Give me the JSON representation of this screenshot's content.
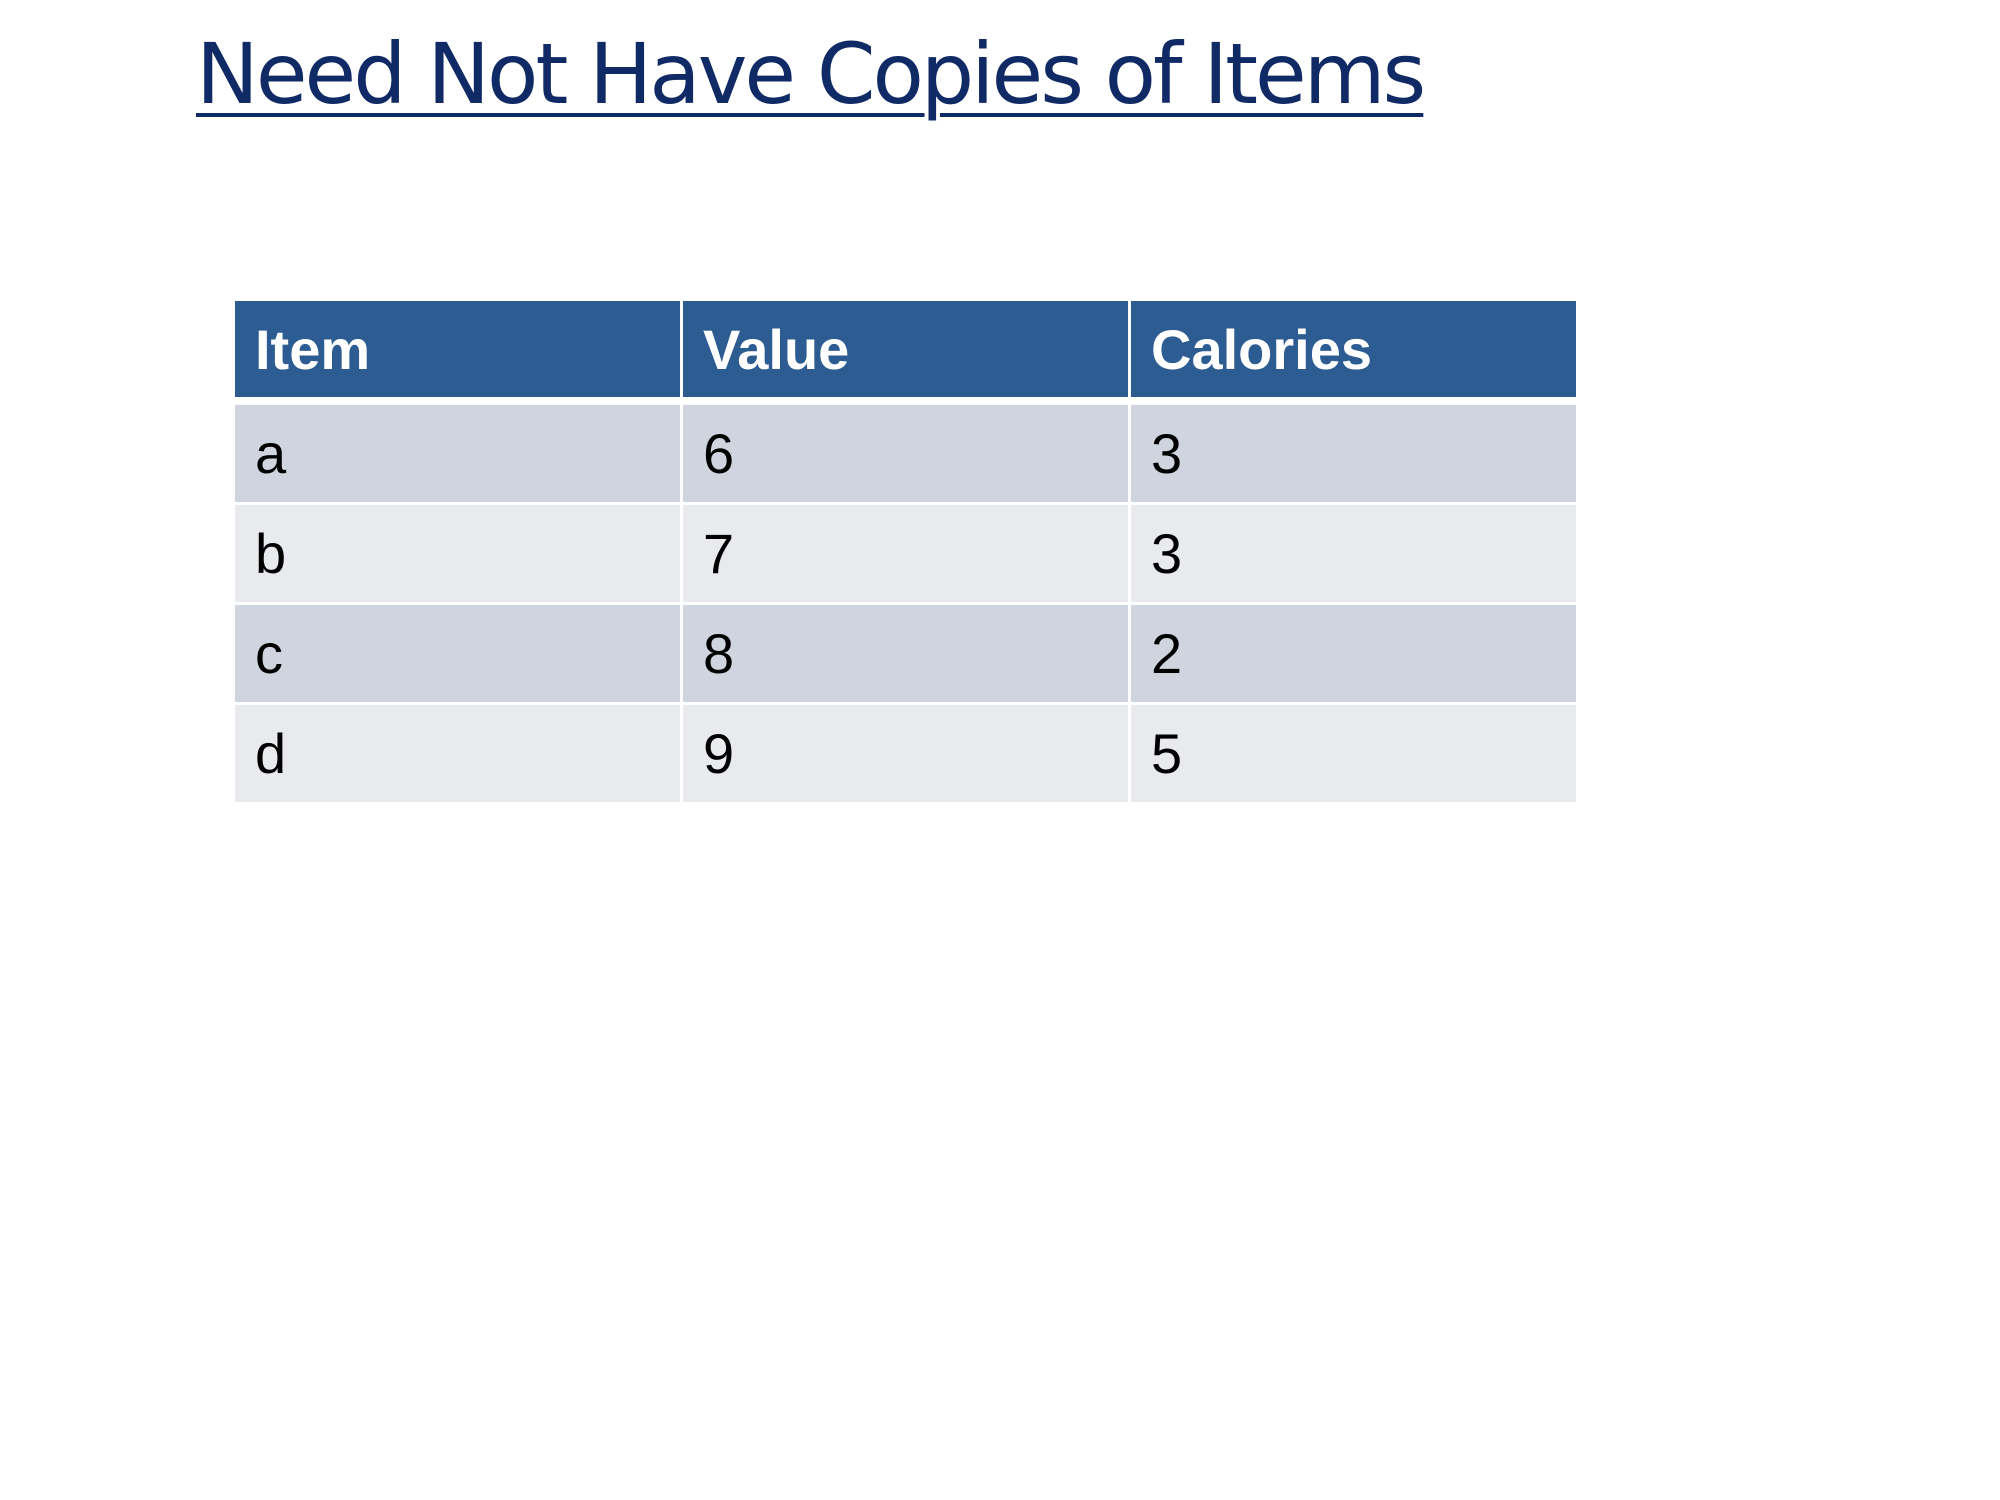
{
  "title": "Need Not Have Copies of Items",
  "colors": {
    "title": "#102a66",
    "header_background": "#2c5c91",
    "header_text": "#ffffff",
    "row_odd": "#cfd4de",
    "row_even": "#e8eaee"
  },
  "table": {
    "headers": [
      "Item",
      "Value",
      "Calories"
    ],
    "rows": [
      [
        "a",
        "6",
        "3"
      ],
      [
        "b",
        "7",
        "3"
      ],
      [
        "c",
        "8",
        "2"
      ],
      [
        "d",
        "9",
        "5"
      ]
    ]
  }
}
